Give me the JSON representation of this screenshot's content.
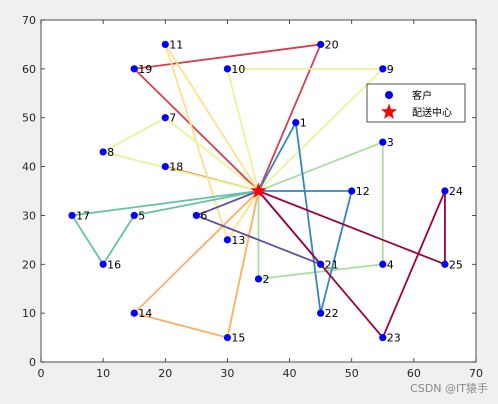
{
  "chart_data": {
    "type": "scatter",
    "xlim": [
      0,
      70
    ],
    "ylim": [
      0,
      70
    ],
    "xticks": [
      0,
      10,
      20,
      30,
      40,
      50,
      60,
      70
    ],
    "yticks": [
      0,
      10,
      20,
      30,
      40,
      50,
      60,
      70
    ],
    "grid": false,
    "legend_location": "top-right",
    "legend": [
      {
        "label": "客户",
        "marker": "circle",
        "color": "#0000ff"
      },
      {
        "label": "配送中心",
        "marker": "star",
        "color": "#ff0000"
      }
    ],
    "center": {
      "x": 35,
      "y": 35
    },
    "customers": [
      {
        "id": "1",
        "x": 41,
        "y": 49
      },
      {
        "id": "2",
        "x": 35,
        "y": 17
      },
      {
        "id": "3",
        "x": 55,
        "y": 45
      },
      {
        "id": "4",
        "x": 55,
        "y": 20
      },
      {
        "id": "5",
        "x": 15,
        "y": 30
      },
      {
        "id": "6",
        "x": 25,
        "y": 30
      },
      {
        "id": "7",
        "x": 20,
        "y": 50
      },
      {
        "id": "8",
        "x": 10,
        "y": 43
      },
      {
        "id": "9",
        "x": 55,
        "y": 60
      },
      {
        "id": "10",
        "x": 30,
        "y": 60
      },
      {
        "id": "11",
        "x": 20,
        "y": 65
      },
      {
        "id": "12",
        "x": 50,
        "y": 35
      },
      {
        "id": "13",
        "x": 30,
        "y": 25
      },
      {
        "id": "14",
        "x": 15,
        "y": 10
      },
      {
        "id": "15",
        "x": 30,
        "y": 5
      },
      {
        "id": "16",
        "x": 10,
        "y": 20
      },
      {
        "id": "17",
        "x": 5,
        "y": 30
      },
      {
        "id": "18",
        "x": 20,
        "y": 40
      },
      {
        "id": "19",
        "x": 15,
        "y": 60
      },
      {
        "id": "20",
        "x": 45,
        "y": 65
      },
      {
        "id": "21",
        "x": 45,
        "y": 20
      },
      {
        "id": "22",
        "x": 45,
        "y": 10
      },
      {
        "id": "23",
        "x": 55,
        "y": 5
      },
      {
        "id": "24",
        "x": 65,
        "y": 35
      },
      {
        "id": "25",
        "x": 65,
        "y": 20
      }
    ],
    "routes": [
      {
        "color": "#d53e4f",
        "stops": [
          "19",
          "20"
        ]
      },
      {
        "color": "#f46d43",
        "stops": [
          "18"
        ]
      },
      {
        "color": "#fdae61",
        "stops": [
          "14",
          "15"
        ]
      },
      {
        "color": "#fee08b",
        "stops": [
          "11",
          "13"
        ]
      },
      {
        "color": "#f2ef9a",
        "stops": [
          "10",
          "9"
        ]
      },
      {
        "color": "#e6f598",
        "stops": [
          "7",
          "8"
        ]
      },
      {
        "color": "#abdda4",
        "stops": [
          "3",
          "4",
          "2"
        ]
      },
      {
        "color": "#66c2a5",
        "stops": [
          "17",
          "16",
          "5"
        ]
      },
      {
        "color": "#3288bd",
        "stops": [
          "1",
          "22",
          "12"
        ]
      },
      {
        "color": "#5e4fa2",
        "stops": [
          "6",
          "21"
        ]
      },
      {
        "color": "#9e0142",
        "stops": [
          "23",
          "24",
          "25"
        ]
      }
    ]
  },
  "watermark": "CSDN @IT猿手"
}
